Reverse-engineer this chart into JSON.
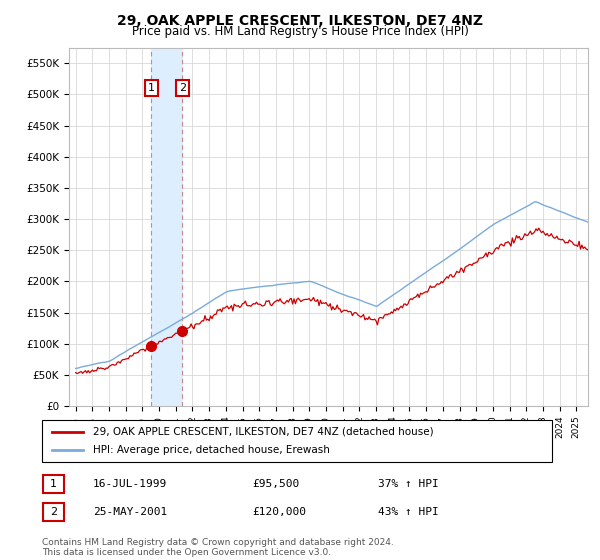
{
  "title": "29, OAK APPLE CRESCENT, ILKESTON, DE7 4NZ",
  "subtitle": "Price paid vs. HM Land Registry's House Price Index (HPI)",
  "title_fontsize": 10,
  "subtitle_fontsize": 8.5,
  "ylim": [
    0,
    575000
  ],
  "yticks": [
    0,
    50000,
    100000,
    150000,
    200000,
    250000,
    300000,
    350000,
    400000,
    450000,
    500000,
    550000
  ],
  "ytick_labels": [
    "£0",
    "£50K",
    "£100K",
    "£150K",
    "£200K",
    "£250K",
    "£300K",
    "£350K",
    "£400K",
    "£450K",
    "£500K",
    "£550K"
  ],
  "background_color": "#ffffff",
  "grid_color": "#d8d8d8",
  "sale1_price": 95500,
  "sale1_year": 1999.54,
  "sale2_price": 120000,
  "sale2_year": 2001.4,
  "red_line_color": "#cc0000",
  "blue_line_color": "#7aabda",
  "shade_color": "#ddeeff",
  "legend1_label": "29, OAK APPLE CRESCENT, ILKESTON, DE7 4NZ (detached house)",
  "legend2_label": "HPI: Average price, detached house, Erewash",
  "footer1": "Contains HM Land Registry data © Crown copyright and database right 2024.",
  "footer2": "This data is licensed under the Open Government Licence v3.0.",
  "table_row1": [
    "1",
    "16-JUL-1999",
    "£95,500",
    "37% ↑ HPI"
  ],
  "table_row2": [
    "2",
    "25-MAY-2001",
    "£120,000",
    "43% ↑ HPI"
  ]
}
